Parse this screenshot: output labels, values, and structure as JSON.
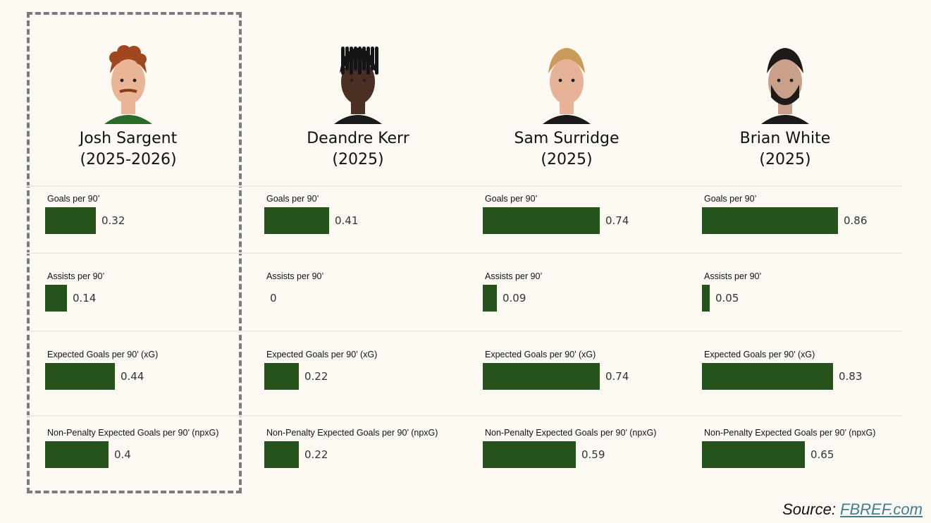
{
  "source": {
    "label": "Source: ",
    "link_text": "FBREF.com"
  },
  "highlighted_player_index": 0,
  "colors": {
    "bar": "#26531b",
    "background": "#fcf9f2",
    "highlight_border": "#7b7b7b",
    "link": "#3f7c93"
  },
  "chart_data": {
    "type": "bar",
    "orientation": "horizontal",
    "legend": "none",
    "grid": false,
    "xlim": [
      0,
      0.86
    ],
    "categories": [
      "Goals per 90’",
      "Assists per 90’",
      "Expected Goals per 90’ (xG)",
      "Non-Penalty Expected Goals per 90’ (npxG)"
    ],
    "players": [
      {
        "name": "Josh Sargent",
        "season": "(2025-2026)",
        "portrait_icon": "player-portrait-curly-red-hair",
        "values": [
          0.32,
          0.14,
          0.44,
          0.4
        ]
      },
      {
        "name": "Deandre Kerr",
        "season": "(2025)",
        "portrait_icon": "player-portrait-dark-dreadlocks",
        "values": [
          0.41,
          0,
          0.22,
          0.22
        ]
      },
      {
        "name": "Sam Surridge",
        "season": "(2025)",
        "portrait_icon": "player-portrait-short-blond-hair",
        "values": [
          0.74,
          0.09,
          0.74,
          0.59
        ]
      },
      {
        "name": "Brian White",
        "season": "(2025)",
        "portrait_icon": "player-portrait-dark-hair-beard",
        "values": [
          0.86,
          0.05,
          0.83,
          0.65
        ]
      }
    ]
  }
}
